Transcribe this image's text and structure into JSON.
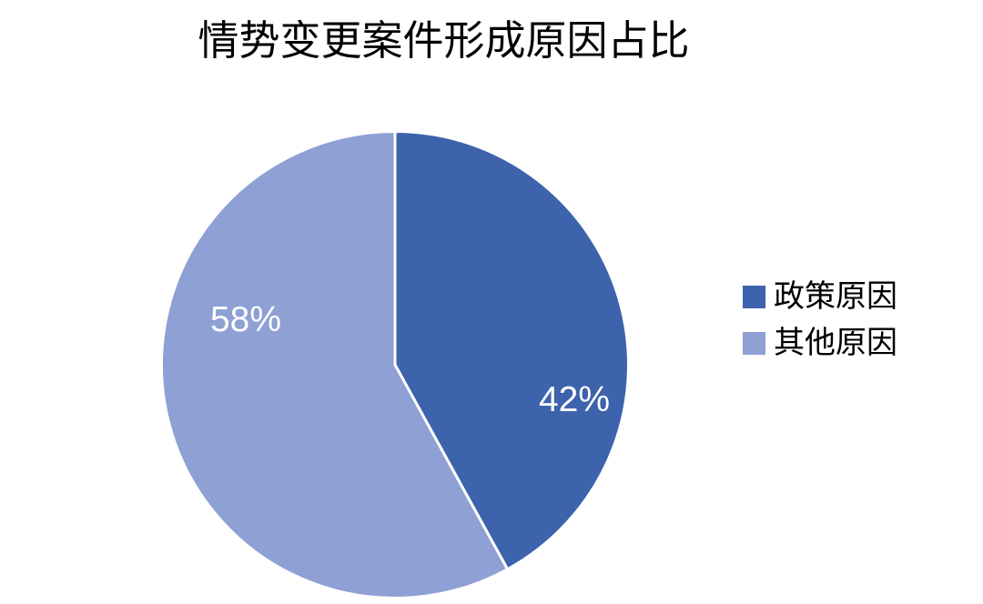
{
  "title": "情势变更案件形成原因占比",
  "chart_data": {
    "type": "pie",
    "title": "情势变更案件形成原因占比",
    "start_angle_deg": 0,
    "direction": "clockwise",
    "legend_position": "right",
    "background_color": "#ffffff",
    "separator_color": "#ffffff",
    "data_label_color": "#ffffff",
    "slices": [
      {
        "label": "政策原因",
        "value": 42,
        "percent_label": "42%",
        "color": "#3c63ac"
      },
      {
        "label": "其他原因",
        "value": 58,
        "percent_label": "58%",
        "color": "#8ea0d4"
      }
    ]
  }
}
